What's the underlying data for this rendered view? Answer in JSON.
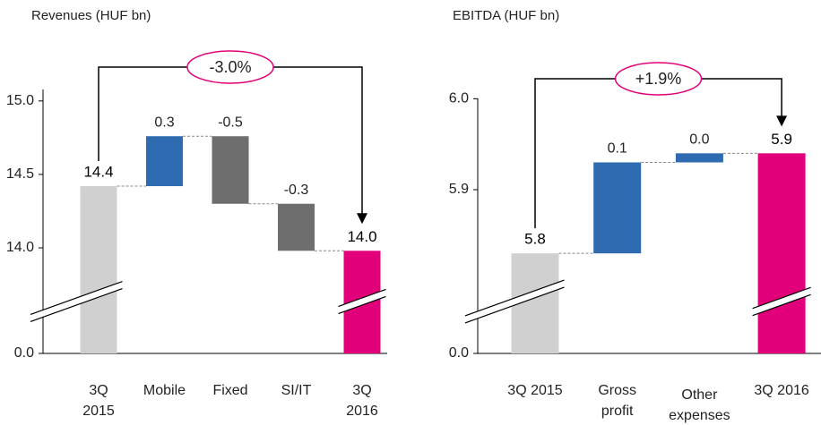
{
  "chart_data": [
    {
      "type": "waterfall",
      "title": "Revenues (HUF bn)",
      "categories": [
        [
          "3Q",
          "2015"
        ],
        [
          "Mobile"
        ],
        [
          "Fixed"
        ],
        [
          "SI/IT"
        ],
        [
          "3Q",
          "2016"
        ]
      ],
      "values": [
        14.42,
        0.34,
        -0.46,
        -0.32,
        13.98
      ],
      "value_labels": [
        "14.4",
        "0.3",
        "-0.5",
        "-0.3",
        "14.0"
      ],
      "colors": [
        "#d0d0d0",
        "#2e6bb0",
        "#6e6e6e",
        "#6e6e6e",
        "#e2007a"
      ],
      "ylim": [
        0,
        15.2
      ],
      "yticks": [
        {
          "value": 0,
          "label": "0.0"
        },
        {
          "value": 14,
          "label": "14.0"
        },
        14.5,
        {
          "value": 15,
          "label": "15.0"
        }
      ],
      "axis_break": true,
      "annotation": "-3.0%"
    },
    {
      "type": "waterfall",
      "title": "EBITDA (HUF bn)",
      "categories": [
        [
          "3Q 2015"
        ],
        [
          "Gross",
          "profit"
        ],
        [
          "Other",
          "expenses"
        ],
        [
          "3Q 2016"
        ]
      ],
      "values": [
        5.83,
        0.1,
        0.01,
        5.94
      ],
      "value_labels": [
        "5.8",
        "0.1",
        "0.0",
        "5.9"
      ],
      "colors": [
        "#d0d0d0",
        "#2e6bb0",
        "#2e6bb0",
        "#e2007a"
      ],
      "ylim": [
        0,
        6.02
      ],
      "yticks": [
        {
          "value": 0,
          "label": "0.0"
        },
        5.9,
        {
          "value": 6,
          "label": "6.0"
        }
      ],
      "axis_break": true,
      "annotation": "+1.9%"
    }
  ]
}
